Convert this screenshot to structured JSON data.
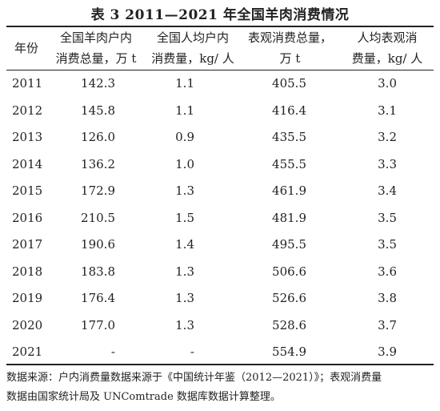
{
  "caption": "表 3  2011—2021 年全国羊肉消费情况",
  "headers": {
    "year": "年份",
    "col1": [
      "全国羊肉户内",
      "消费总量，万 t"
    ],
    "col2": [
      "全国人均户内",
      "消费量，kg/ 人"
    ],
    "col3": [
      "表观消费总量，",
      "万 t"
    ],
    "col4": [
      "人均表观消",
      "费量，kg/ 人"
    ]
  },
  "rows": [
    {
      "year": "2011",
      "c1": "142.3",
      "c2": "1.1",
      "c3": "405.5",
      "c4": "3.0"
    },
    {
      "year": "2012",
      "c1": "145.8",
      "c2": "1.1",
      "c3": "416.4",
      "c4": "3.1"
    },
    {
      "year": "2013",
      "c1": "126.0",
      "c2": "0.9",
      "c3": "435.5",
      "c4": "3.2"
    },
    {
      "year": "2014",
      "c1": "136.2",
      "c2": "1.0",
      "c3": "455.5",
      "c4": "3.3"
    },
    {
      "year": "2015",
      "c1": "172.9",
      "c2": "1.3",
      "c3": "461.9",
      "c4": "3.4"
    },
    {
      "year": "2016",
      "c1": "210.5",
      "c2": "1.5",
      "c3": "481.9",
      "c4": "3.5"
    },
    {
      "year": "2017",
      "c1": "190.6",
      "c2": "1.4",
      "c3": "495.5",
      "c4": "3.5"
    },
    {
      "year": "2018",
      "c1": "183.8",
      "c2": "1.3",
      "c3": "506.6",
      "c4": "3.6"
    },
    {
      "year": "2019",
      "c1": "176.4",
      "c2": "1.3",
      "c3": "526.6",
      "c4": "3.8"
    },
    {
      "year": "2020",
      "c1": "177.0",
      "c2": "1.3",
      "c3": "528.6",
      "c4": "3.7"
    },
    {
      "year": "2021",
      "c1": "-",
      "c2": "-",
      "c3": "554.9",
      "c4": "3.9"
    }
  ],
  "note": [
    "数据来源：户内消费量数据来源于《中国统计年鉴（2012—2021）》；表观消费量",
    "数据由国家统计局及 UNComtrade 数据库数据计算整理。"
  ]
}
